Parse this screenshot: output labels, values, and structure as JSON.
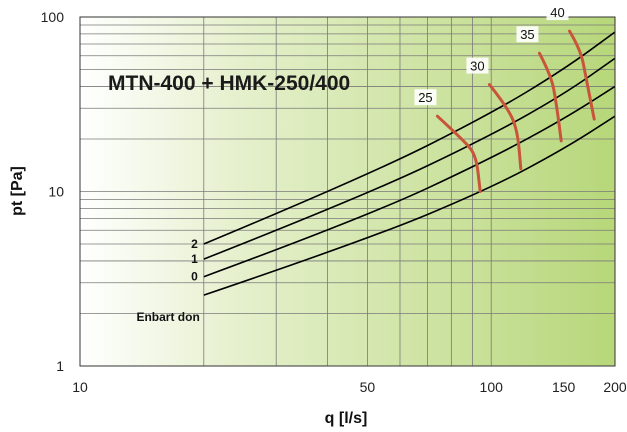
{
  "chart_data": {
    "type": "line",
    "title": "MTN-400 + HMK-250/400",
    "xlabel": "q [l/s]",
    "ylabel": "pt [Pa]",
    "xscale": "log",
    "yscale": "log",
    "xlim": [
      10,
      200
    ],
    "ylim": [
      1,
      100
    ],
    "x_ticks": [
      {
        "value": 10,
        "label": "10"
      },
      {
        "value": 50,
        "label": "50"
      },
      {
        "value": 100,
        "label": "100"
      },
      {
        "value": 150,
        "label": "150"
      },
      {
        "value": 200,
        "label": "200"
      }
    ],
    "y_ticks": [
      {
        "value": 1,
        "label": "1"
      },
      {
        "value": 10,
        "label": "10"
      },
      {
        "value": 100,
        "label": "100"
      }
    ],
    "grid": true,
    "background": "gradient white to green",
    "series": [
      {
        "name": "Enbart don",
        "color": "#000000",
        "points": [
          [
            20,
            2.55
          ],
          [
            50,
            5.3
          ],
          [
            100,
            10.5
          ],
          [
            150,
            17.5
          ],
          [
            200,
            27.0
          ]
        ]
      },
      {
        "name": "0",
        "color": "#000000",
        "points": [
          [
            20,
            3.25
          ],
          [
            50,
            7.2
          ],
          [
            100,
            15.5
          ],
          [
            150,
            26.0
          ],
          [
            200,
            40.0
          ]
        ]
      },
      {
        "name": "1",
        "color": "#000000",
        "points": [
          [
            20,
            4.1
          ],
          [
            50,
            9.6
          ],
          [
            100,
            21.0
          ],
          [
            150,
            36.0
          ],
          [
            200,
            58.0
          ]
        ]
      },
      {
        "name": "2",
        "color": "#000000",
        "points": [
          [
            20,
            5.0
          ],
          [
            50,
            12.3
          ],
          [
            100,
            28.0
          ],
          [
            150,
            50.0
          ],
          [
            200,
            82.0
          ]
        ]
      }
    ],
    "flow_lines": [
      {
        "label": "25",
        "color": "#c8553a",
        "points": [
          [
            74,
            27.0
          ],
          [
            86,
            19.5
          ],
          [
            92,
            16.0
          ],
          [
            94,
            10.0
          ]
        ]
      },
      {
        "label": "30",
        "color": "#c8553a",
        "points": [
          [
            99,
            41.0
          ],
          [
            110,
            30.0
          ],
          [
            116,
            22.0
          ],
          [
            118,
            13.5
          ]
        ]
      },
      {
        "label": "35",
        "color": "#c8553a",
        "points": [
          [
            131,
            62.0
          ],
          [
            140,
            46.0
          ],
          [
            144,
            32.0
          ],
          [
            148,
            19.5
          ]
        ]
      },
      {
        "label": "40",
        "color": "#c8553a",
        "points": [
          [
            155,
            83.0
          ],
          [
            165,
            65.0
          ],
          [
            170,
            45.0
          ],
          [
            178,
            26.0
          ]
        ]
      }
    ]
  }
}
